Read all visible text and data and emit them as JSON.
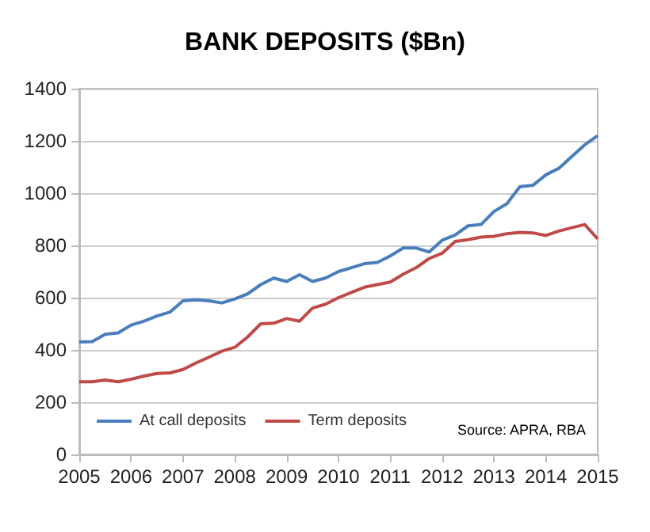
{
  "chart_data": {
    "type": "line",
    "title": "BANK DEPOSITS ($Bn)",
    "x": [
      2005,
      2005.25,
      2005.5,
      2005.75,
      2006,
      2006.25,
      2006.5,
      2006.75,
      2007,
      2007.25,
      2007.5,
      2007.75,
      2008,
      2008.25,
      2008.5,
      2008.75,
      2009,
      2009.25,
      2009.5,
      2009.75,
      2010,
      2010.25,
      2010.5,
      2010.75,
      2011,
      2011.25,
      2011.5,
      2011.75,
      2012,
      2012.25,
      2012.5,
      2012.75,
      2013,
      2013.25,
      2013.5,
      2013.75,
      2014,
      2014.25,
      2014.5,
      2014.75,
      2015
    ],
    "series": [
      {
        "name": "At call deposits",
        "color": "#4a7ebb",
        "values": [
          430,
          432,
          460,
          465,
          495,
          510,
          530,
          545,
          588,
          592,
          588,
          580,
          595,
          615,
          650,
          675,
          662,
          688,
          662,
          675,
          700,
          715,
          730,
          735,
          760,
          790,
          790,
          775,
          820,
          840,
          875,
          880,
          930,
          960,
          1025,
          1030,
          1070,
          1095,
          1140,
          1185,
          1220
        ]
      },
      {
        "name": "Term deposits",
        "color": "#be4b48",
        "values": [
          278,
          278,
          285,
          278,
          288,
          300,
          310,
          312,
          325,
          350,
          372,
          395,
          410,
          450,
          500,
          502,
          520,
          510,
          560,
          575,
          600,
          620,
          640,
          650,
          660,
          690,
          715,
          750,
          770,
          815,
          822,
          832,
          835,
          845,
          850,
          848,
          838,
          855,
          868,
          880,
          825
        ]
      }
    ],
    "xlim": [
      2005,
      2015
    ],
    "xticks": [
      2005,
      2006,
      2007,
      2008,
      2009,
      2010,
      2011,
      2012,
      2013,
      2014,
      2015
    ],
    "ylim": [
      0,
      1400
    ],
    "yticks": [
      0,
      200,
      400,
      600,
      800,
      1000,
      1200,
      1400
    ],
    "grid": "y",
    "legend": "bottom",
    "marker": "none",
    "line_style": "solid",
    "annotations": [
      "Source: APRA, RBA"
    ]
  }
}
